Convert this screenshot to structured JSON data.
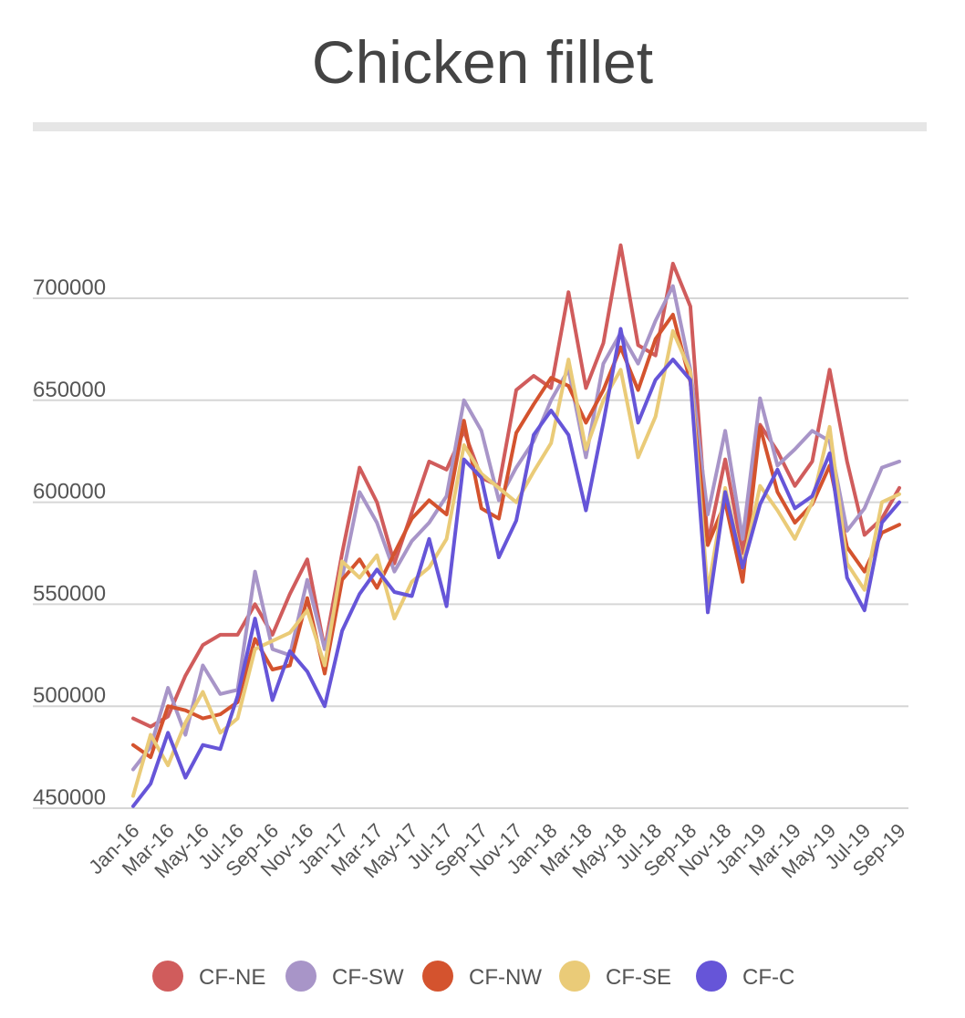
{
  "chart_data": {
    "type": "line",
    "title": "Chicken fillet",
    "ylim": [
      450000,
      750000
    ],
    "yticks": [
      450000,
      500000,
      550000,
      600000,
      650000,
      700000
    ],
    "grid": true,
    "legend_position": "bottom",
    "x": [
      "Jan-16",
      "Feb-16",
      "Mar-16",
      "Apr-16",
      "May-16",
      "Jun-16",
      "Jul-16",
      "Aug-16",
      "Sep-16",
      "Oct-16",
      "Nov-16",
      "Dec-16",
      "Jan-17",
      "Feb-17",
      "Mar-17",
      "Apr-17",
      "May-17",
      "Jun-17",
      "Jul-17",
      "Aug-17",
      "Sep-17",
      "Oct-17",
      "Nov-17",
      "Dec-17",
      "Jan-18",
      "Feb-18",
      "Mar-18",
      "Apr-18",
      "May-18",
      "Jun-18",
      "Jul-18",
      "Aug-18",
      "Sep-18",
      "Oct-18",
      "Nov-18",
      "Dec-18",
      "Jan-19",
      "Feb-19",
      "Mar-19",
      "Apr-19",
      "May-19",
      "Jun-19",
      "Jul-19",
      "Aug-19",
      "Sep-19"
    ],
    "x_tick_labels": [
      "Jan-16",
      "Mar-16",
      "May-16",
      "Jul-16",
      "Sep-16",
      "Nov-16",
      "Jan-17",
      "Mar-17",
      "May-17",
      "Jul-17",
      "Sep-17",
      "Nov-17",
      "Jan-18",
      "Mar-18",
      "May-18",
      "Jul-18",
      "Sep-18",
      "Nov-18",
      "Jan-19",
      "Mar-19",
      "May-19",
      "Jul-19",
      "Sep-19"
    ],
    "series": [
      {
        "name": "CF-NE",
        "color": "#d05c5c",
        "values": [
          494000,
          490000,
          495000,
          515000,
          530000,
          535000,
          535000,
          550000,
          535000,
          555000,
          572000,
          528000,
          575000,
          617000,
          600000,
          570000,
          595000,
          620000,
          616000,
          635000,
          612000,
          608000,
          655000,
          662000,
          656000,
          703000,
          656000,
          678000,
          726000,
          677000,
          672000,
          717000,
          696000,
          580000,
          621000,
          575000,
          638000,
          625000,
          608000,
          620000,
          665000,
          620000,
          584000,
          592000,
          607000
        ]
      },
      {
        "name": "CF-SW",
        "color": "#a895c8",
        "values": [
          469000,
          480000,
          509000,
          486000,
          520000,
          506000,
          508000,
          566000,
          528000,
          525000,
          562000,
          528000,
          563000,
          605000,
          590000,
          566000,
          581000,
          590000,
          603000,
          650000,
          635000,
          601000,
          617000,
          630000,
          650000,
          665000,
          622000,
          668000,
          683000,
          668000,
          689000,
          706000,
          665000,
          594000,
          635000,
          582000,
          651000,
          618000,
          626000,
          635000,
          630000,
          586000,
          597000,
          617000,
          620000
        ]
      },
      {
        "name": "CF-NW",
        "color": "#d4532e",
        "values": [
          481000,
          475000,
          500000,
          498000,
          494000,
          496000,
          502000,
          533000,
          518000,
          520000,
          553000,
          516000,
          562000,
          572000,
          558000,
          575000,
          592000,
          601000,
          594000,
          640000,
          597000,
          592000,
          634000,
          648000,
          661000,
          657000,
          639000,
          655000,
          676000,
          655000,
          680000,
          692000,
          659000,
          579000,
          600000,
          561000,
          637000,
          605000,
          590000,
          599000,
          618000,
          578000,
          566000,
          585000,
          589000
        ]
      },
      {
        "name": "CF-SE",
        "color": "#eacb78",
        "values": [
          456000,
          486000,
          471000,
          492000,
          507000,
          487000,
          494000,
          528000,
          532000,
          536000,
          547000,
          520000,
          571000,
          563000,
          574000,
          543000,
          561000,
          568000,
          582000,
          628000,
          614000,
          607000,
          600000,
          615000,
          629000,
          670000,
          626000,
          650000,
          665000,
          622000,
          642000,
          684000,
          664000,
          556000,
          607000,
          569000,
          608000,
          596000,
          582000,
          600000,
          637000,
          570000,
          557000,
          600000,
          604000
        ]
      },
      {
        "name": "CF-C",
        "color": "#6655d8",
        "values": [
          451000,
          462000,
          487000,
          465000,
          481000,
          479000,
          505000,
          543000,
          503000,
          527000,
          517000,
          500000,
          537000,
          555000,
          567000,
          556000,
          554000,
          582000,
          549000,
          621000,
          612000,
          573000,
          591000,
          633000,
          645000,
          633000,
          596000,
          639000,
          685000,
          639000,
          660000,
          670000,
          660000,
          546000,
          605000,
          568000,
          599000,
          616000,
          597000,
          603000,
          624000,
          563000,
          547000,
          590000,
          600000
        ]
      }
    ]
  }
}
